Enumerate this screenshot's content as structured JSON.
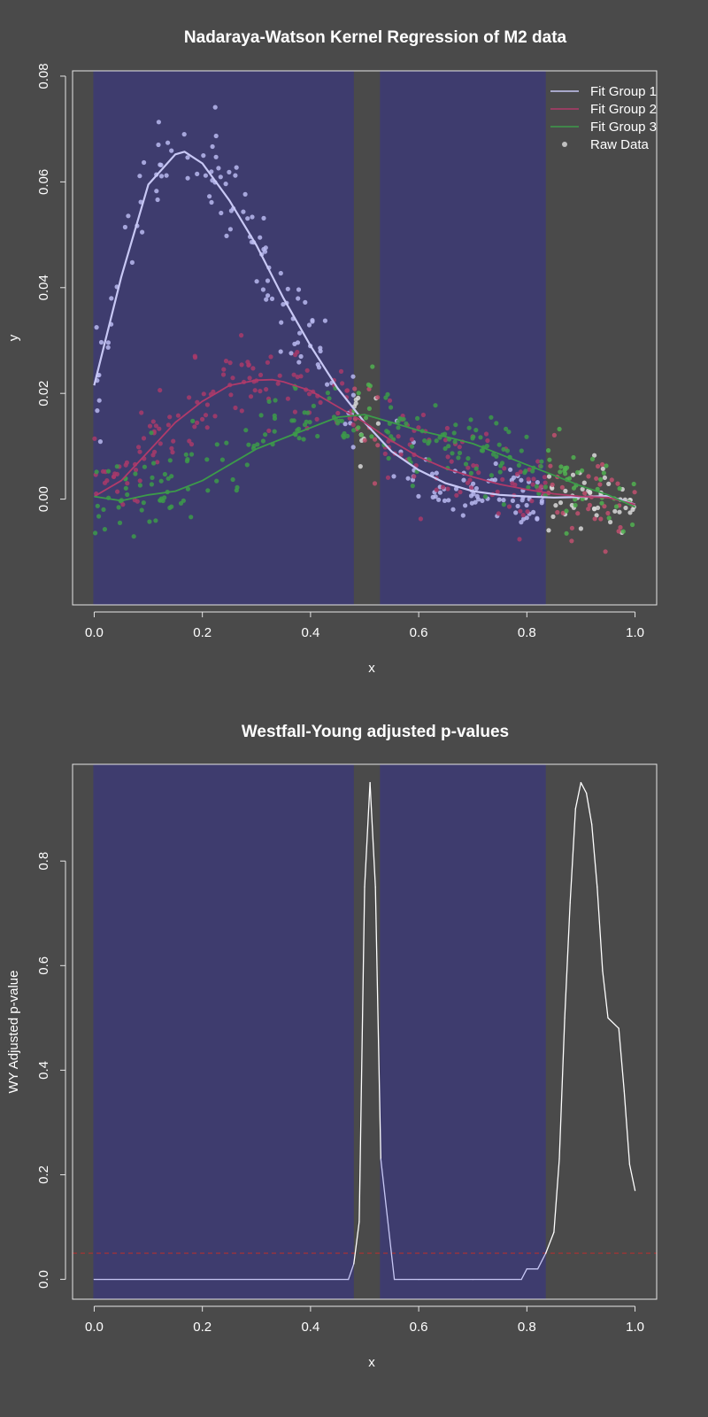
{
  "chart_data": [
    {
      "type": "scatter",
      "title": "Nadaraya-Watson Kernel Regression of M2 data",
      "xlabel": "x",
      "ylabel": "y",
      "xlim": [
        -0.04,
        1.04
      ],
      "ylim": [
        -0.02,
        0.081
      ],
      "xticks": [
        "0.0",
        "0.2",
        "0.4",
        "0.6",
        "0.8",
        "1.0"
      ],
      "xtick_values": [
        0,
        0.2,
        0.4,
        0.6,
        0.8,
        1.0
      ],
      "yticks": [
        "0.00",
        "0.02",
        "0.04",
        "0.06",
        "0.08"
      ],
      "ytick_values": [
        0,
        0.02,
        0.04,
        0.06,
        0.08
      ],
      "grid": false,
      "legend_position": "top-right",
      "shaded_regions": [
        [
          0.0,
          0.48
        ],
        [
          0.53,
          0.835
        ]
      ],
      "legend": [
        {
          "label": "Fit Group 1",
          "kind": "line",
          "color": "#c8c8f5"
        },
        {
          "label": "Fit Group 2",
          "kind": "line",
          "color": "#b03a6a"
        },
        {
          "label": "Fit Group 3",
          "kind": "line",
          "color": "#3c9a4a"
        },
        {
          "label": "Raw Data",
          "kind": "point",
          "color": "#c0c0c0"
        }
      ],
      "series": [
        {
          "name": "Fit Group 1",
          "color": "#c8c8f5",
          "point_color": "#b8b8f0",
          "x": [
            0,
            0.05,
            0.1,
            0.15,
            0.167,
            0.2,
            0.25,
            0.3,
            0.35,
            0.4,
            0.45,
            0.5,
            0.55,
            0.6,
            0.65,
            0.7,
            0.75,
            0.8,
            0.85,
            0.9,
            0.95,
            1.0
          ],
          "y": [
            0.0215,
            0.042,
            0.0595,
            0.0652,
            0.0657,
            0.0635,
            0.0565,
            0.048,
            0.038,
            0.029,
            0.021,
            0.0145,
            0.009,
            0.0055,
            0.003,
            0.0015,
            0.0008,
            0.0005,
            0.0003,
            0.0004,
            0.0006,
            -0.001
          ]
        },
        {
          "name": "Fit Group 2",
          "color": "#b03a6a",
          "point_color": "#a83a6a",
          "x": [
            0,
            0.05,
            0.1,
            0.15,
            0.2,
            0.25,
            0.3,
            0.33,
            0.35,
            0.4,
            0.45,
            0.5,
            0.55,
            0.6,
            0.65,
            0.7,
            0.75,
            0.8,
            0.85,
            0.9,
            0.95,
            1.0
          ],
          "y": [
            0.0005,
            0.0035,
            0.009,
            0.0145,
            0.0185,
            0.0215,
            0.0225,
            0.0226,
            0.0222,
            0.0205,
            0.0175,
            0.0145,
            0.011,
            0.008,
            0.0058,
            0.0042,
            0.0028,
            0.0018,
            0.001,
            0.0005,
            0.0003,
            -0.001
          ]
        },
        {
          "name": "Fit Group 3",
          "color": "#3c9a4a",
          "point_color": "#3c9a4a",
          "x": [
            0,
            0.05,
            0.1,
            0.15,
            0.2,
            0.25,
            0.3,
            0.35,
            0.4,
            0.45,
            0.5,
            0.55,
            0.6,
            0.65,
            0.7,
            0.75,
            0.8,
            0.85,
            0.9,
            0.95,
            1.0
          ],
          "y": [
            0.0005,
            -0.0003,
            0.0008,
            0.0015,
            0.0035,
            0.0065,
            0.0095,
            0.0115,
            0.0135,
            0.0155,
            0.016,
            0.0145,
            0.013,
            0.0118,
            0.0105,
            0.0085,
            0.0065,
            0.0045,
            0.0025,
            0.0008,
            -0.0015
          ]
        }
      ]
    },
    {
      "type": "line",
      "title": "Westfall-Young adjusted p-values",
      "xlabel": "x",
      "ylabel": "WY Adjusted p-value",
      "xlim": [
        -0.04,
        1.04
      ],
      "ylim": [
        -0.038,
        0.985
      ],
      "xticks": [
        "0.0",
        "0.2",
        "0.4",
        "0.6",
        "0.8",
        "1.0"
      ],
      "xtick_values": [
        0,
        0.2,
        0.4,
        0.6,
        0.8,
        1.0
      ],
      "yticks": [
        "0.0",
        "0.2",
        "0.4",
        "0.6",
        "0.8"
      ],
      "ytick_values": [
        0,
        0.2,
        0.4,
        0.6,
        0.8
      ],
      "grid": false,
      "shaded_regions": [
        [
          0.0,
          0.48
        ],
        [
          0.53,
          0.835
        ]
      ],
      "threshold": {
        "y": 0.05,
        "color": "#b03030"
      },
      "series": [
        {
          "color_inside": "#c8c8f5",
          "color_outside": "#ffffff",
          "x": [
            0,
            0.47,
            0.48,
            0.49,
            0.5,
            0.51,
            0.52,
            0.53,
            0.555,
            0.6,
            0.7,
            0.79,
            0.8,
            0.82,
            0.835,
            0.85,
            0.86,
            0.87,
            0.88,
            0.89,
            0.9,
            0.91,
            0.92,
            0.93,
            0.94,
            0.95,
            0.97,
            0.98,
            0.99,
            1.0
          ],
          "y": [
            0,
            0,
            0.03,
            0.11,
            0.75,
            0.95,
            0.75,
            0.23,
            0,
            0,
            0,
            0,
            0.02,
            0.02,
            0.05,
            0.09,
            0.23,
            0.5,
            0.72,
            0.9,
            0.95,
            0.93,
            0.87,
            0.75,
            0.59,
            0.5,
            0.48,
            0.36,
            0.22,
            0.17
          ]
        }
      ]
    }
  ]
}
